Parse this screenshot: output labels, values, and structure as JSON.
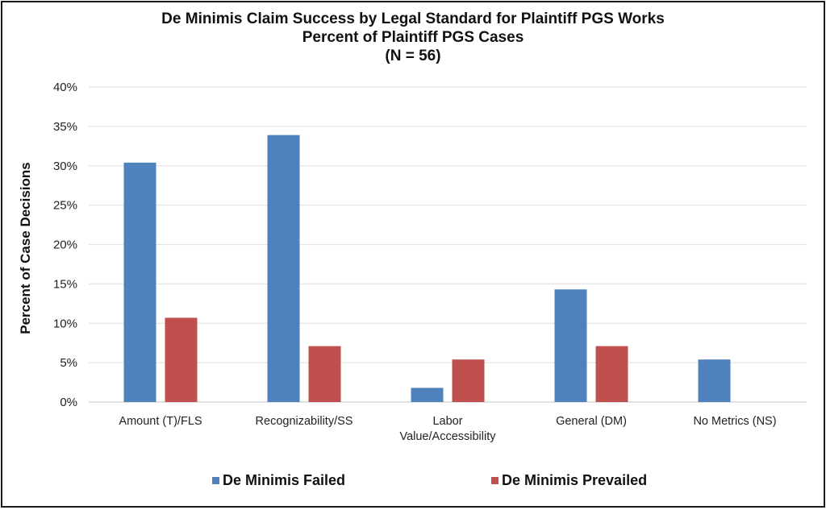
{
  "chart_data": {
    "type": "bar",
    "title": [
      "De Minimis Claim Success by Legal Standard for Plaintiff PGS Works",
      "Percent of Plaintiff PGS Cases",
      "(N = 56)"
    ],
    "xlabel": "",
    "ylabel": "Percent of Case Decisions",
    "ylim": [
      0,
      40
    ],
    "yticks": [
      0,
      5,
      10,
      15,
      20,
      25,
      30,
      35,
      40
    ],
    "ytick_labels": [
      "0%",
      "5%",
      "10%",
      "15%",
      "20%",
      "25%",
      "30%",
      "35%",
      "40%"
    ],
    "grid": true,
    "legend_position": "bottom",
    "categories": [
      [
        "Amount (T)/FLS"
      ],
      [
        "Recognizability/SS"
      ],
      [
        "Labor",
        "Value/Accessibility"
      ],
      [
        "General (DM)"
      ],
      [
        "No Metrics (NS)"
      ]
    ],
    "series": [
      {
        "name": "De Minimis Failed",
        "color": "#4f81bd",
        "values": [
          30.4,
          33.9,
          1.8,
          14.3,
          5.4
        ]
      },
      {
        "name": "De Minimis Prevailed",
        "color": "#c0504d",
        "values": [
          10.7,
          7.1,
          5.4,
          7.1,
          0
        ]
      }
    ]
  }
}
